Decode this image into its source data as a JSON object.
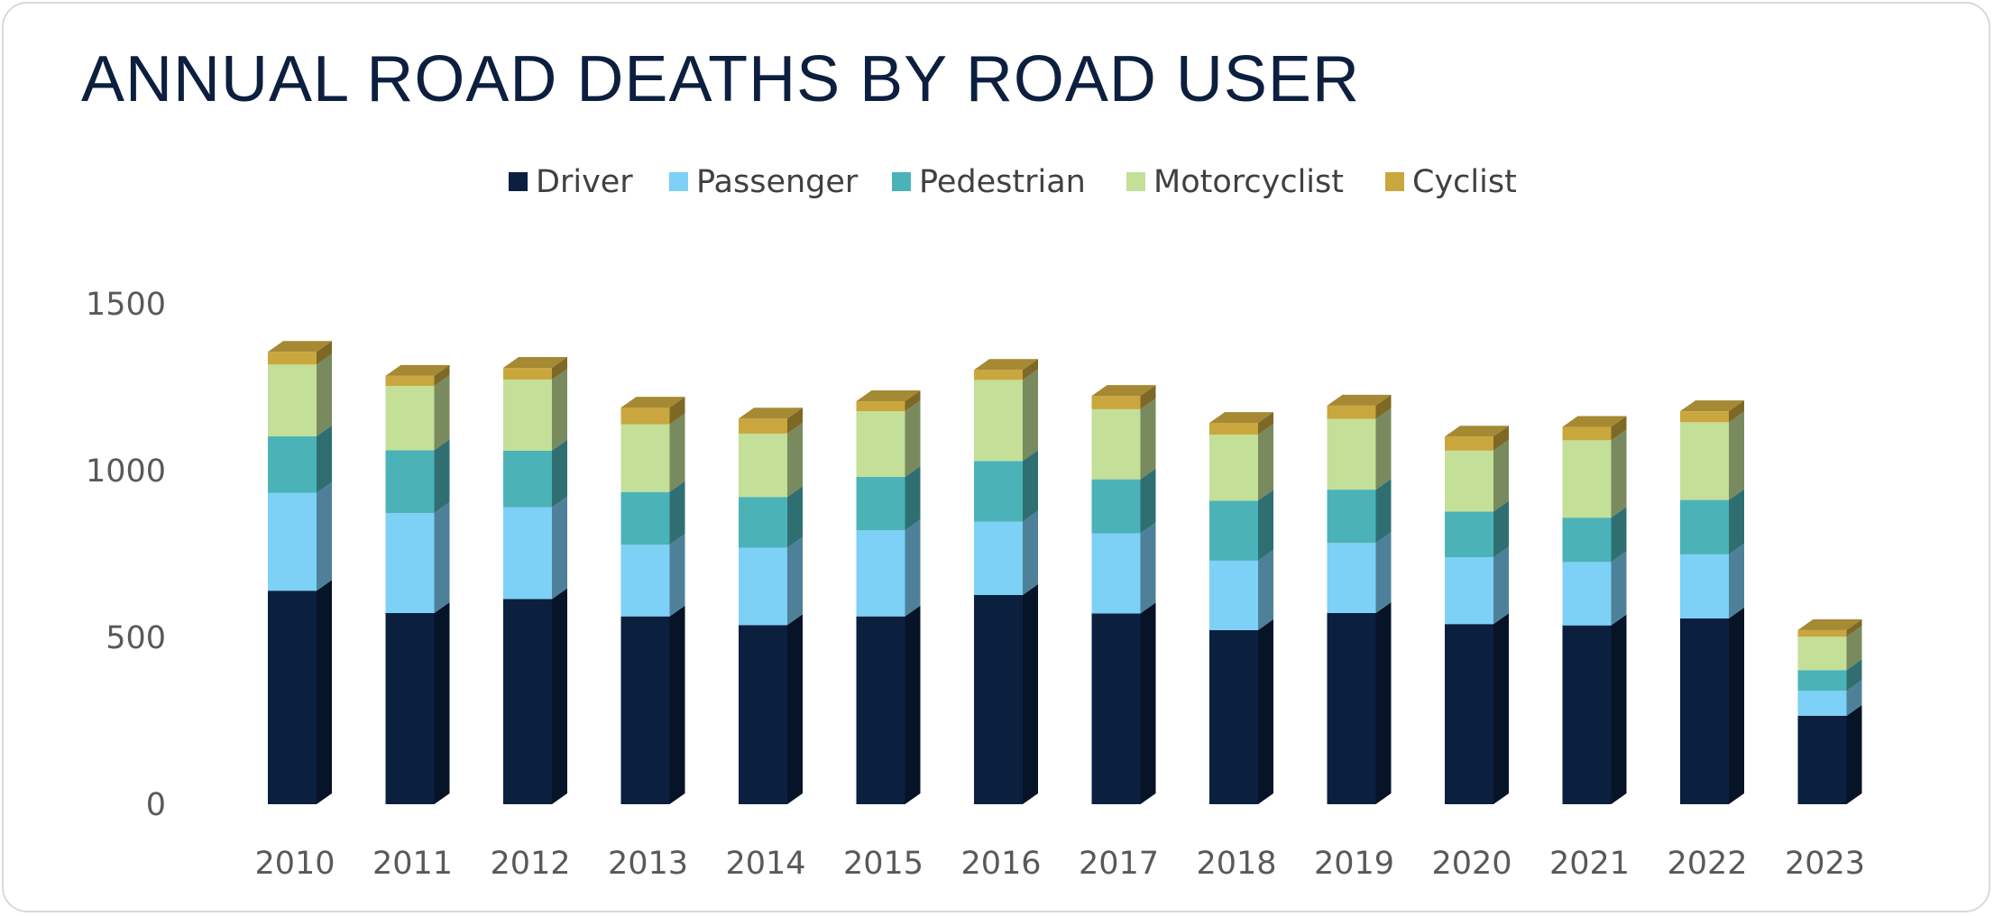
{
  "chart_data": {
    "type": "bar",
    "stacked": true,
    "style": "3d-column",
    "title": "ANNUAL ROAD DEATHS BY ROAD USER",
    "xlabel": "",
    "ylabel": "",
    "ylim": [
      0,
      1500
    ],
    "yticks": [
      "0",
      "500",
      "1000",
      "1500"
    ],
    "grid": false,
    "legend_position": "top",
    "categories": [
      "2010",
      "2011",
      "2012",
      "2013",
      "2014",
      "2015",
      "2016",
      "2017",
      "2018",
      "2019",
      "2020",
      "2021",
      "2022",
      "2023"
    ],
    "series": [
      {
        "name": "Driver",
        "color": "#0b1f3f",
        "values": [
          640,
          573,
          615,
          563,
          537,
          563,
          627,
          572,
          522,
          573,
          540,
          536,
          557,
          265
        ]
      },
      {
        "name": "Passenger",
        "color": "#7dd0f6",
        "values": [
          293,
          300,
          275,
          215,
          232,
          258,
          220,
          240,
          208,
          210,
          200,
          190,
          192,
          75
        ]
      },
      {
        "name": "Pedestrian",
        "color": "#4bb3b8",
        "values": [
          170,
          188,
          170,
          158,
          152,
          160,
          182,
          162,
          180,
          160,
          137,
          133,
          163,
          62
        ]
      },
      {
        "name": "Motorcyclist",
        "color": "#c3df98",
        "values": [
          215,
          193,
          213,
          203,
          190,
          197,
          243,
          210,
          198,
          212,
          183,
          232,
          233,
          100
        ]
      },
      {
        "name": "Cyclist",
        "color": "#c9a73e",
        "values": [
          38,
          30,
          35,
          50,
          45,
          30,
          30,
          40,
          35,
          40,
          42,
          40,
          33,
          20
        ]
      }
    ]
  }
}
